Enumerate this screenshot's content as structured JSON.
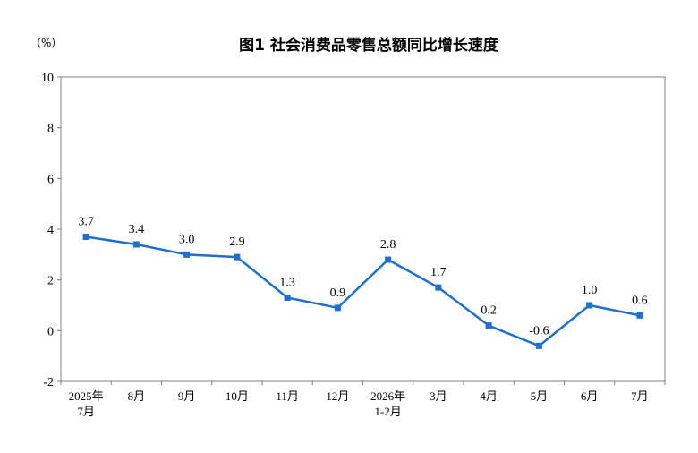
{
  "chart_data": {
    "type": "line",
    "title": "图1  社会消费品零售总额同比增长速度",
    "unit_label": "（%）",
    "categories": [
      [
        "2025年",
        "7月"
      ],
      [
        "8月"
      ],
      [
        "9月"
      ],
      [
        "10月"
      ],
      [
        "11月"
      ],
      [
        "12月"
      ],
      [
        "2026年",
        "1-2月"
      ],
      [
        "3月"
      ],
      [
        "4月"
      ],
      [
        "5月"
      ],
      [
        "6月"
      ],
      [
        "7月"
      ]
    ],
    "series": [
      {
        "values": [
          3.7,
          3.4,
          3.0,
          2.9,
          1.3,
          0.9,
          2.8,
          1.7,
          0.2,
          -0.6,
          1.0,
          0.6
        ],
        "labels": [
          "3.7",
          "3.4",
          "3.0",
          "2.9",
          "1.3",
          "0.9",
          "2.8",
          "1.7",
          "0.2",
          "-0.6",
          "1.0",
          "0.6"
        ],
        "color": "#1f6fd1"
      }
    ],
    "ylim": [
      -2,
      10
    ],
    "yticks": [
      -2,
      0,
      2,
      4,
      6,
      8,
      10
    ],
    "grid": false,
    "legend": "none"
  }
}
